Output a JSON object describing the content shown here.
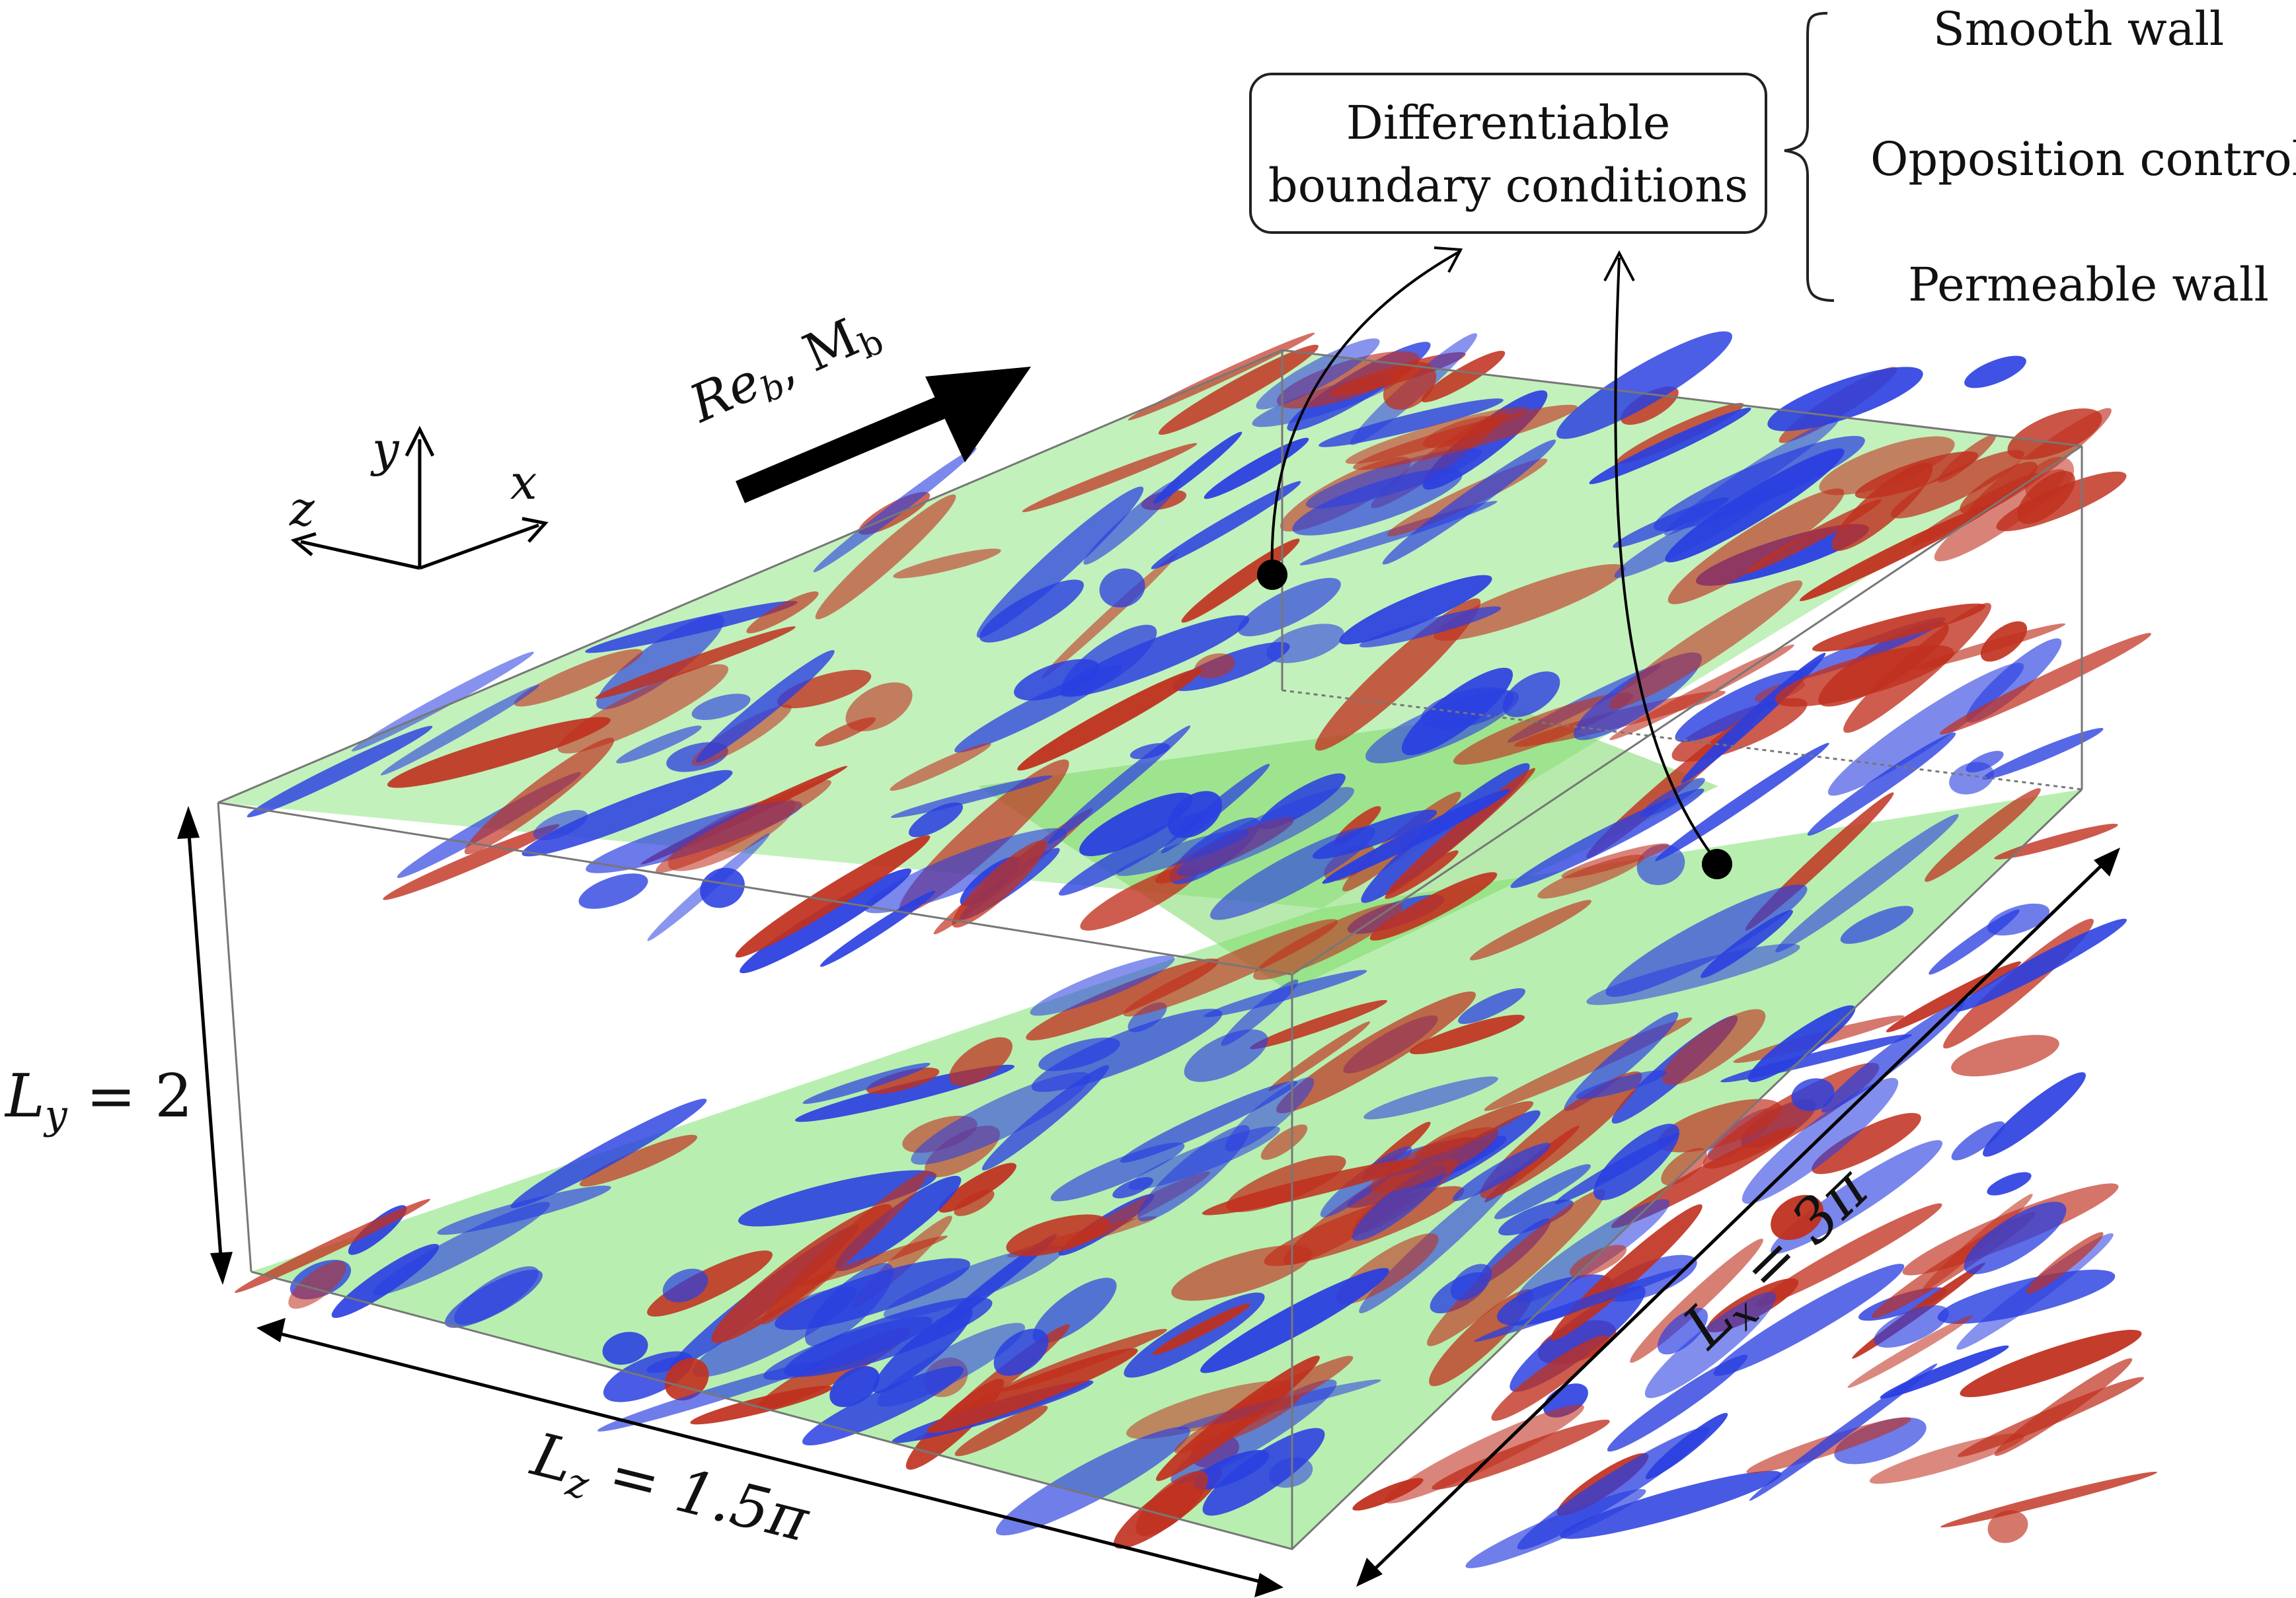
{
  "boundary_box": {
    "line1": "Differentiable",
    "line2": "boundary conditions"
  },
  "options": [
    "Smooth wall",
    "Opposition control",
    "Permeable wall"
  ],
  "flow_label": {
    "re": "Re",
    "re_sub": "b",
    "sep": ", ",
    "m": "M",
    "m_sub": "b"
  },
  "axes": {
    "x": "x",
    "y": "y",
    "z": "z"
  },
  "dimensions": {
    "ly": {
      "sym": "L",
      "sub": "y",
      "val": " = 2"
    },
    "lz": {
      "sym": "L",
      "sub": "z",
      "val": " = 1.5π"
    },
    "lx": {
      "sym": "L",
      "sub": "x",
      "val": " = 3π"
    }
  },
  "colors": {
    "wall": "#b8efb0",
    "wall_dark": "#7fd96a",
    "structure_red": "#c0301e",
    "structure_blue": "#2a3fe0",
    "box_edge": "#777777",
    "text": "#111111"
  }
}
